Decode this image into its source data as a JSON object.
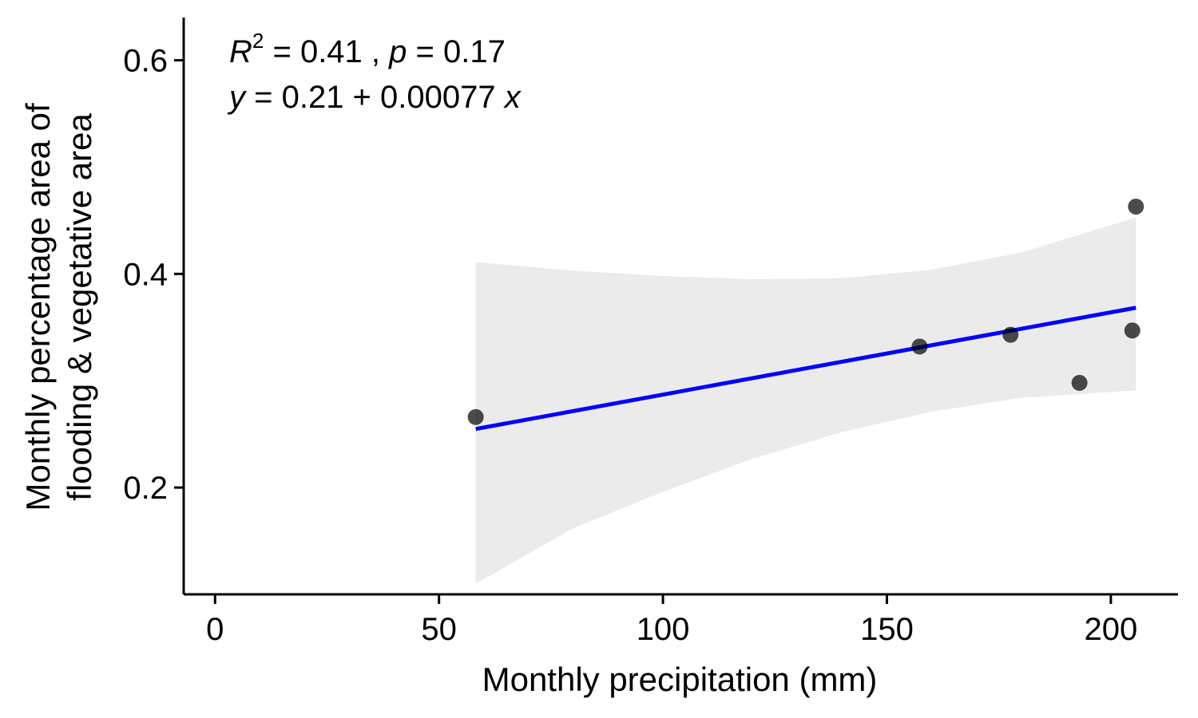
{
  "chart_data": {
    "type": "scatter",
    "title": "",
    "xlabel": "Monthly precipitation (mm)",
    "ylabel_lines": [
      "Monthly percentage area of",
      "flooding & vegetative area"
    ],
    "xlim": [
      -7,
      215
    ],
    "ylim": [
      0.1,
      0.64
    ],
    "xticks": [
      0,
      50,
      100,
      150,
      200
    ],
    "yticks": [
      0.2,
      0.4,
      0.6
    ],
    "xtick_labels": [
      "0",
      "50",
      "100",
      "150",
      "200"
    ],
    "ytick_labels": [
      "0.2",
      "0.4",
      "0.6"
    ],
    "grid": false,
    "legend": "none",
    "points": [
      {
        "x": 58.2,
        "y": 0.266
      },
      {
        "x": 157.3,
        "y": 0.332
      },
      {
        "x": 177.6,
        "y": 0.343
      },
      {
        "x": 193.0,
        "y": 0.298
      },
      {
        "x": 204.8,
        "y": 0.347
      },
      {
        "x": 205.6,
        "y": 0.463
      }
    ],
    "regression": {
      "intercept": 0.21,
      "slope": 0.00077,
      "x_range": [
        58.2,
        205.6
      ],
      "ci_upper": [
        [
          58.2,
          0.411
        ],
        [
          80,
          0.403
        ],
        [
          100,
          0.398
        ],
        [
          120,
          0.395
        ],
        [
          140,
          0.396
        ],
        [
          160,
          0.404
        ],
        [
          180,
          0.42
        ],
        [
          205.6,
          0.453
        ]
      ],
      "ci_lower": [
        [
          58.2,
          0.11
        ],
        [
          80,
          0.162
        ],
        [
          100,
          0.196
        ],
        [
          120,
          0.227
        ],
        [
          140,
          0.252
        ],
        [
          160,
          0.271
        ],
        [
          180,
          0.284
        ],
        [
          205.6,
          0.291
        ]
      ]
    },
    "annotation": {
      "r2_label": "R",
      "r2_sup": "2",
      "r2_value": " = 0.41 , ",
      "p_label": "p",
      "p_value": " = 0.17",
      "eq_y": "y",
      "eq_body": " = 0.21 + 0.00077 ",
      "eq_x": "x"
    },
    "colors": {
      "line": "#0000ff",
      "ribbon": "#ebebeb",
      "point": "#000000"
    }
  }
}
